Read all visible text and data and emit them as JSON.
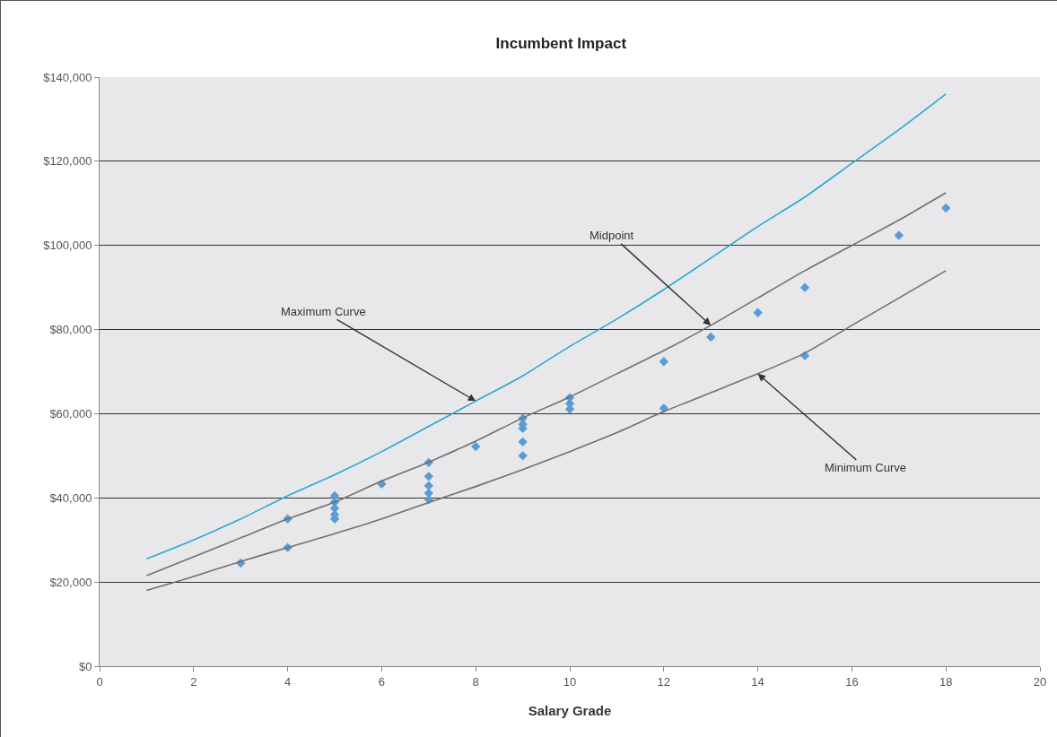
{
  "chart_data": {
    "type": "scatter",
    "title": "Incumbent Impact",
    "xlabel": "Salary Grade",
    "xlim": [
      0,
      20
    ],
    "xticks": [
      0,
      2,
      4,
      6,
      8,
      10,
      12,
      14,
      16,
      18,
      20
    ],
    "ylim": [
      0,
      140000
    ],
    "yticks": [
      {
        "value": 0,
        "label": "$0"
      },
      {
        "value": 20000,
        "label": "$20,000"
      },
      {
        "value": 40000,
        "label": "$40,000"
      },
      {
        "value": 60000,
        "label": "$60,000"
      },
      {
        "value": 80000,
        "label": "$80,000"
      },
      {
        "value": 100000,
        "label": "$100,000"
      },
      {
        "value": 120000,
        "label": "$120,000"
      },
      {
        "value": 140000,
        "label": "$140,000"
      }
    ],
    "grid": "y",
    "series": [
      {
        "marker": "diamond",
        "color": "#5b9bd5",
        "x": [
          3,
          4,
          4,
          5,
          5,
          5,
          5,
          5,
          6,
          7,
          7,
          7,
          7,
          7,
          8,
          9,
          9,
          9,
          9,
          9,
          10,
          10,
          10,
          12,
          12,
          13,
          14,
          15,
          15,
          17,
          18
        ],
        "values": [
          24500,
          35000,
          28200,
          40500,
          39000,
          37500,
          36000,
          35000,
          43300,
          48400,
          45100,
          42900,
          41100,
          39600,
          52200,
          58900,
          57500,
          56500,
          53300,
          50000,
          63800,
          62400,
          61100,
          72400,
          61300,
          78200,
          84000,
          90000,
          73800,
          102400,
          108900
        ]
      },
      {
        "type": "line",
        "marker": "none",
        "line_style": "solid",
        "color": "#2aa7d6",
        "x": [
          1,
          2,
          3,
          4,
          5,
          6,
          7,
          8,
          9,
          10,
          11,
          12,
          13,
          14,
          15,
          16,
          17,
          18
        ],
        "values": [
          25500,
          30000,
          35000,
          40500,
          45500,
          51000,
          57000,
          63000,
          69000,
          76000,
          82500,
          89500,
          97000,
          104500,
          111500,
          119500,
          127500,
          136000
        ]
      },
      {
        "type": "line",
        "marker": "none",
        "line_style": "solid",
        "color": "#707070",
        "x": [
          1,
          2,
          3,
          4,
          5,
          6,
          7,
          8,
          9,
          10,
          11,
          12,
          13,
          14,
          15,
          16,
          17,
          18
        ],
        "values": [
          21500,
          26000,
          30500,
          35000,
          39000,
          44000,
          48500,
          53500,
          59000,
          64000,
          69500,
          75000,
          81000,
          87500,
          94000,
          100000,
          106000,
          112500
        ]
      },
      {
        "type": "line",
        "marker": "none",
        "line_style": "solid",
        "color": "#707070",
        "x": [
          1,
          2,
          3,
          4,
          5,
          6,
          7,
          8,
          9,
          10,
          11,
          12,
          13,
          14,
          15,
          16,
          17,
          18
        ],
        "values": [
          18000,
          21300,
          24900,
          28200,
          31500,
          35000,
          38900,
          42700,
          46700,
          51000,
          55500,
          60500,
          65000,
          69500,
          74400,
          81000,
          87500,
          94000
        ]
      }
    ],
    "annotations": [
      {
        "text": "Maximum Curve",
        "x": 8,
        "y": 63000
      },
      {
        "text": "Midpoint",
        "x": 13,
        "y": 81000
      },
      {
        "text": "Minimum Curve",
        "x": 14,
        "y": 69500
      }
    ]
  }
}
